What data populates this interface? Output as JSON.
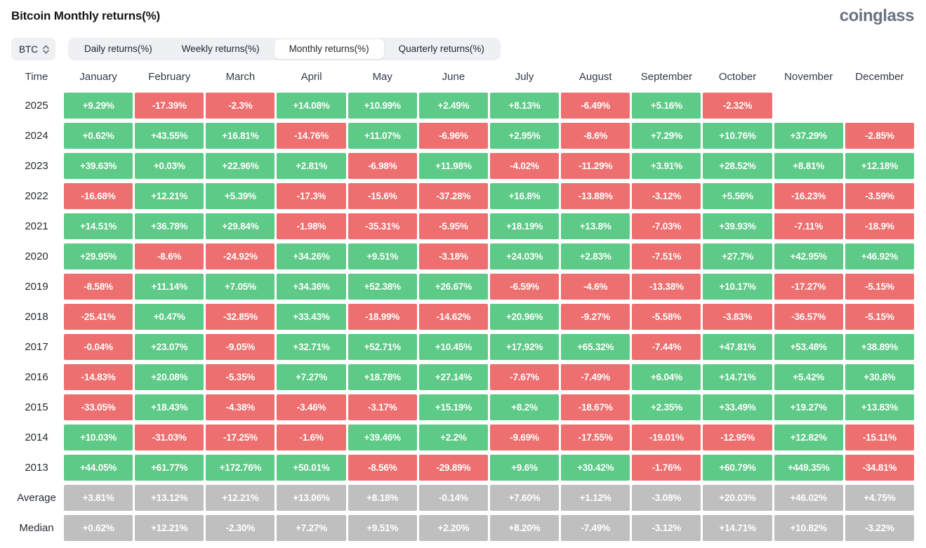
{
  "header": {
    "title": "Bitcoin Monthly returns(%)",
    "logo": "coinglass"
  },
  "controls": {
    "symbol_select": {
      "value": "BTC",
      "icon": "up-down-chevron"
    },
    "tabs": [
      {
        "label": "Daily returns(%)",
        "active": false
      },
      {
        "label": "Weekly returns(%)",
        "active": false
      },
      {
        "label": "Monthly returns(%)",
        "active": true
      },
      {
        "label": "Quarterly returns(%)",
        "active": false
      }
    ]
  },
  "colors": {
    "positive": "#5dca87",
    "negative": "#ed6f6f",
    "neutral": "#bfbfbf"
  },
  "chart_data": {
    "type": "heatmap",
    "title": "Bitcoin Monthly returns(%)",
    "time_column_header": "Time",
    "categories": [
      "January",
      "February",
      "March",
      "April",
      "May",
      "June",
      "July",
      "August",
      "September",
      "October",
      "November",
      "December"
    ],
    "legend": {
      "positive": "green",
      "negative": "red",
      "summary": "gray"
    },
    "rows": [
      {
        "label": "2025",
        "kind": "year",
        "cells": [
          "+9.29%",
          "-17.39%",
          "-2.3%",
          "+14.08%",
          "+10.99%",
          "+2.49%",
          "+8.13%",
          "-6.49%",
          "+5.16%",
          "-2.32%",
          null,
          null
        ]
      },
      {
        "label": "2024",
        "kind": "year",
        "cells": [
          "+0.62%",
          "+43.55%",
          "+16.81%",
          "-14.76%",
          "+11.07%",
          "-6.96%",
          "+2.95%",
          "-8.6%",
          "+7.29%",
          "+10.76%",
          "+37.29%",
          "-2.85%"
        ]
      },
      {
        "label": "2023",
        "kind": "year",
        "cells": [
          "+39.63%",
          "+0.03%",
          "+22.96%",
          "+2.81%",
          "-6.98%",
          "+11.98%",
          "-4.02%",
          "-11.29%",
          "+3.91%",
          "+28.52%",
          "+8.81%",
          "+12.18%"
        ]
      },
      {
        "label": "2022",
        "kind": "year",
        "cells": [
          "-16.68%",
          "+12.21%",
          "+5.39%",
          "-17.3%",
          "-15.6%",
          "-37.28%",
          "+16.8%",
          "-13.88%",
          "-3.12%",
          "+5.56%",
          "-16.23%",
          "-3.59%"
        ]
      },
      {
        "label": "2021",
        "kind": "year",
        "cells": [
          "+14.51%",
          "+36.78%",
          "+29.84%",
          "-1.98%",
          "-35.31%",
          "-5.95%",
          "+18.19%",
          "+13.8%",
          "-7.03%",
          "+39.93%",
          "-7.11%",
          "-18.9%"
        ]
      },
      {
        "label": "2020",
        "kind": "year",
        "cells": [
          "+29.95%",
          "-8.6%",
          "-24.92%",
          "+34.26%",
          "+9.51%",
          "-3.18%",
          "+24.03%",
          "+2.83%",
          "-7.51%",
          "+27.7%",
          "+42.95%",
          "+46.92%"
        ]
      },
      {
        "label": "2019",
        "kind": "year",
        "cells": [
          "-8.58%",
          "+11.14%",
          "+7.05%",
          "+34.36%",
          "+52.38%",
          "+26.67%",
          "-6.59%",
          "-4.6%",
          "-13.38%",
          "+10.17%",
          "-17.27%",
          "-5.15%"
        ]
      },
      {
        "label": "2018",
        "kind": "year",
        "cells": [
          "-25.41%",
          "+0.47%",
          "-32.85%",
          "+33.43%",
          "-18.99%",
          "-14.62%",
          "+20.96%",
          "-9.27%",
          "-5.58%",
          "-3.83%",
          "-36.57%",
          "-5.15%"
        ]
      },
      {
        "label": "2017",
        "kind": "year",
        "cells": [
          "-0.04%",
          "+23.07%",
          "-9.05%",
          "+32.71%",
          "+52.71%",
          "+10.45%",
          "+17.92%",
          "+65.32%",
          "-7.44%",
          "+47.81%",
          "+53.48%",
          "+38.89%"
        ]
      },
      {
        "label": "2016",
        "kind": "year",
        "cells": [
          "-14.83%",
          "+20.08%",
          "-5.35%",
          "+7.27%",
          "+18.78%",
          "+27.14%",
          "-7.67%",
          "-7.49%",
          "+6.04%",
          "+14.71%",
          "+5.42%",
          "+30.8%"
        ]
      },
      {
        "label": "2015",
        "kind": "year",
        "cells": [
          "-33.05%",
          "+18.43%",
          "-4.38%",
          "-3.46%",
          "-3.17%",
          "+15.19%",
          "+8.2%",
          "-18.67%",
          "+2.35%",
          "+33.49%",
          "+19.27%",
          "+13.83%"
        ]
      },
      {
        "label": "2014",
        "kind": "year",
        "cells": [
          "+10.03%",
          "-31.03%",
          "-17.25%",
          "-1.6%",
          "+39.46%",
          "+2.2%",
          "-9.69%",
          "-17.55%",
          "-19.01%",
          "-12.95%",
          "+12.82%",
          "-15.11%"
        ]
      },
      {
        "label": "2013",
        "kind": "year",
        "cells": [
          "+44.05%",
          "+61.77%",
          "+172.76%",
          "+50.01%",
          "-8.56%",
          "-29.89%",
          "+9.6%",
          "+30.42%",
          "-1.76%",
          "+60.79%",
          "+449.35%",
          "-34.81%"
        ]
      },
      {
        "label": "Average",
        "kind": "summary",
        "cells": [
          "+3.81%",
          "+13.12%",
          "+12.21%",
          "+13.06%",
          "+8.18%",
          "-0.14%",
          "+7.60%",
          "+1.12%",
          "-3.08%",
          "+20.03%",
          "+46.02%",
          "+4.75%"
        ]
      },
      {
        "label": "Median",
        "kind": "summary",
        "cells": [
          "+0.62%",
          "+12.21%",
          "-2.30%",
          "+7.27%",
          "+9.51%",
          "+2.20%",
          "+8.20%",
          "-7.49%",
          "-3.12%",
          "+14.71%",
          "+10.82%",
          "-3.22%"
        ]
      }
    ]
  }
}
